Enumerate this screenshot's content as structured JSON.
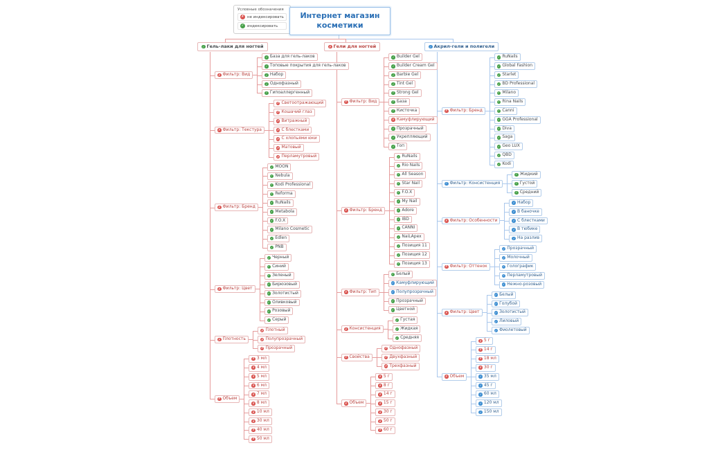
{
  "title": {
    "text": "Интернет магазин косметики"
  },
  "legend": {
    "title": "Условные обозначения",
    "items": [
      {
        "label": "не индексировать",
        "icon": "red"
      },
      {
        "label": "индексировать",
        "icon": "green"
      }
    ]
  },
  "colors": {
    "red_line": "#e59b9b",
    "red_border": "#e7b6b6",
    "blue_line": "#a9c7ec",
    "blue_border": "#b3cdea",
    "noindex_icon": "#d9534f",
    "index_icon": "#46a049",
    "blue_icon": "#3f8fd2",
    "title_text": "#2a6fb5"
  },
  "branches": [
    {
      "label": "Гель-лаки для ногтей",
      "icon": "green",
      "theme": "red",
      "children": [
        {
          "label": "Фильтр: Вид",
          "icon": "red",
          "children": [
            {
              "label": "База для гель-лаков",
              "icon": "green"
            },
            {
              "label": "Топовые покрытия для гель-лаков",
              "icon": "green"
            },
            {
              "label": "Набор",
              "icon": "green"
            },
            {
              "label": "Однофазный",
              "icon": "green"
            },
            {
              "label": "Гипоаллергенный",
              "icon": "green"
            }
          ]
        },
        {
          "label": "Фильтр: Текстура",
          "icon": "red",
          "children": [
            {
              "label": "Светоотражающий",
              "icon": "red"
            },
            {
              "label": "Кошачий глаз",
              "icon": "red"
            },
            {
              "label": "Витражный",
              "icon": "red"
            },
            {
              "label": "С блестками",
              "icon": "red"
            },
            {
              "label": "С хлопьями юки",
              "icon": "red"
            },
            {
              "label": "Матовый",
              "icon": "red"
            },
            {
              "label": "Перламутровый",
              "icon": "red"
            }
          ]
        },
        {
          "label": "Фильтр: Бренд",
          "icon": "red",
          "children": [
            {
              "label": "MOON",
              "icon": "green"
            },
            {
              "label": "Nebula",
              "icon": "green"
            },
            {
              "label": "Kodi Professional",
              "icon": "green"
            },
            {
              "label": "Reforma",
              "icon": "green"
            },
            {
              "label": "RuNails",
              "icon": "green"
            },
            {
              "label": "Metabola",
              "icon": "green"
            },
            {
              "label": "F.O.X",
              "icon": "green"
            },
            {
              "label": "Milano Cosmetic",
              "icon": "green"
            },
            {
              "label": "Edlen",
              "icon": "green"
            },
            {
              "label": "PNB",
              "icon": "green"
            }
          ]
        },
        {
          "label": "Фильтр: Цвет",
          "icon": "red",
          "children": [
            {
              "label": "Черный",
              "icon": "green"
            },
            {
              "label": "Синий",
              "icon": "green"
            },
            {
              "label": "Зеленый",
              "icon": "green"
            },
            {
              "label": "Бирюзовый",
              "icon": "green"
            },
            {
              "label": "Золотистый",
              "icon": "green"
            },
            {
              "label": "Оливковый",
              "icon": "green"
            },
            {
              "label": "Розовый",
              "icon": "green"
            },
            {
              "label": "Серый",
              "icon": "green"
            }
          ]
        },
        {
          "label": "Плотность",
          "icon": "red",
          "children": [
            {
              "label": "Плотный",
              "icon": "red"
            },
            {
              "label": "Полупрозрачный",
              "icon": "red"
            },
            {
              "label": "Прозрачный",
              "icon": "red"
            }
          ]
        },
        {
          "label": "Объем",
          "icon": "red",
          "children": [
            {
              "label": "3 мл",
              "icon": "red"
            },
            {
              "label": "4 мл",
              "icon": "red"
            },
            {
              "label": "5 мл",
              "icon": "red"
            },
            {
              "label": "6 мл",
              "icon": "red"
            },
            {
              "label": "7 мл",
              "icon": "red"
            },
            {
              "label": "8 мл",
              "icon": "red"
            },
            {
              "label": "10 мл",
              "icon": "red"
            },
            {
              "label": "30 мл",
              "icon": "red"
            },
            {
              "label": "40 мл",
              "icon": "red"
            },
            {
              "label": "50 мл",
              "icon": "red"
            }
          ]
        }
      ]
    },
    {
      "label": "Гели для ногтей",
      "icon": "red",
      "theme": "red",
      "children": [
        {
          "label": "Фильтр: Вид",
          "icon": "red",
          "children": [
            {
              "label": "Builder Gel",
              "icon": "green"
            },
            {
              "label": "Builder Cream Gel",
              "icon": "green"
            },
            {
              "label": "Barbie Gel",
              "icon": "green"
            },
            {
              "label": "Tint Gel",
              "icon": "green"
            },
            {
              "label": "Strong Gel",
              "icon": "green"
            },
            {
              "label": "База",
              "icon": "green"
            },
            {
              "label": "Кисточка",
              "icon": "green"
            },
            {
              "label": "Камуфлирующий",
              "icon": "red"
            },
            {
              "label": "Прозрачный",
              "icon": "green"
            },
            {
              "label": "Укрепляющий",
              "icon": "green"
            },
            {
              "label": "Топ",
              "icon": "green"
            }
          ]
        },
        {
          "label": "Фильтр: Бренд",
          "icon": "red",
          "children": [
            {
              "label": "RuNails",
              "icon": "green"
            },
            {
              "label": "Rio Nails",
              "icon": "green"
            },
            {
              "label": "All Season",
              "icon": "green"
            },
            {
              "label": "Star Nail",
              "icon": "green"
            },
            {
              "label": "F.O.X",
              "icon": "green"
            },
            {
              "label": "My Nail",
              "icon": "green"
            },
            {
              "label": "Adore",
              "icon": "green"
            },
            {
              "label": "IBD",
              "icon": "green"
            },
            {
              "label": "CANNI",
              "icon": "green"
            },
            {
              "label": "NaiLApex",
              "icon": "green"
            },
            {
              "label": "Позиция 11",
              "icon": "green"
            },
            {
              "label": "Позиция 12",
              "icon": "green"
            },
            {
              "label": "Позиция 13",
              "icon": "green"
            }
          ]
        },
        {
          "label": "Фильтр: Тип",
          "icon": "red",
          "children": [
            {
              "label": "Белый",
              "icon": "green"
            },
            {
              "label": "Камуфлирующий",
              "icon": "blue"
            },
            {
              "label": "Полупрозрачный",
              "icon": "blue"
            },
            {
              "label": "Прозрачный",
              "icon": "green"
            },
            {
              "label": "Цветной",
              "icon": "green"
            }
          ]
        },
        {
          "label": "Консистенция",
          "icon": "red",
          "children": [
            {
              "label": "Густая",
              "icon": "green"
            },
            {
              "label": "Жидкая",
              "icon": "green"
            },
            {
              "label": "Средняя",
              "icon": "green"
            }
          ]
        },
        {
          "label": "Свойства",
          "icon": "red",
          "children": [
            {
              "label": "Однофазный",
              "icon": "red"
            },
            {
              "label": "Двухфазный",
              "icon": "red"
            },
            {
              "label": "Трехфазный",
              "icon": "red"
            }
          ]
        },
        {
          "label": "Объем",
          "icon": "red",
          "children": [
            {
              "label": "5 г",
              "icon": "red"
            },
            {
              "label": "8 г",
              "icon": "red"
            },
            {
              "label": "14 г",
              "icon": "red"
            },
            {
              "label": "15 г",
              "icon": "red"
            },
            {
              "label": "30 г",
              "icon": "red"
            },
            {
              "label": "50 г",
              "icon": "red"
            },
            {
              "label": "60 г",
              "icon": "red"
            }
          ]
        }
      ]
    },
    {
      "label": "Акрил-гели и полигели",
      "icon": "blue",
      "theme": "blue",
      "children": [
        {
          "label": "Фильтр: Бренд",
          "icon": "red",
          "children": [
            {
              "label": "RuNails",
              "icon": "green"
            },
            {
              "label": "Global Fashion",
              "icon": "green"
            },
            {
              "label": "Starlet",
              "icon": "green"
            },
            {
              "label": "BD Professional",
              "icon": "green"
            },
            {
              "label": "Milano",
              "icon": "green"
            },
            {
              "label": "Rina Nails",
              "icon": "green"
            },
            {
              "label": "Canni",
              "icon": "green"
            },
            {
              "label": "GGA Professional",
              "icon": "green"
            },
            {
              "label": "Diva",
              "icon": "green"
            },
            {
              "label": "Saga",
              "icon": "green"
            },
            {
              "label": "Geo LUX",
              "icon": "green"
            },
            {
              "label": "QBD",
              "icon": "green"
            },
            {
              "label": "Kodi",
              "icon": "green"
            }
          ]
        },
        {
          "label": "Фильтр: Консистенция",
          "icon": "blue",
          "children": [
            {
              "label": "Жидкий",
              "icon": "green"
            },
            {
              "label": "Густой",
              "icon": "green"
            },
            {
              "label": "Средний",
              "icon": "green"
            }
          ]
        },
        {
          "label": "Фильтр: Особенности",
          "icon": "red",
          "children": [
            {
              "label": "Набор",
              "icon": "blue"
            },
            {
              "label": "В баночке",
              "icon": "blue"
            },
            {
              "label": "С блестками",
              "icon": "blue"
            },
            {
              "label": "В тюбике",
              "icon": "blue"
            },
            {
              "label": "На разлив",
              "icon": "blue"
            }
          ]
        },
        {
          "label": "Фильтр: Оттенок",
          "icon": "red",
          "children": [
            {
              "label": "Прозрачный",
              "icon": "blue"
            },
            {
              "label": "Молочный",
              "icon": "blue"
            },
            {
              "label": "Голографик",
              "icon": "blue"
            },
            {
              "label": "Перламутровый",
              "icon": "blue"
            },
            {
              "label": "Нежно-розовый",
              "icon": "blue"
            }
          ]
        },
        {
          "label": "Фильтр: Цвет",
          "icon": "red",
          "children": [
            {
              "label": "Белый",
              "icon": "blue"
            },
            {
              "label": "Голубой",
              "icon": "blue"
            },
            {
              "label": "Золотистый",
              "icon": "blue"
            },
            {
              "label": "Лиловый",
              "icon": "blue"
            },
            {
              "label": "Фиолетовый",
              "icon": "blue"
            }
          ]
        },
        {
          "label": "Объем",
          "icon": "red",
          "children": [
            {
              "label": "5 г",
              "icon": "red"
            },
            {
              "label": "14 г",
              "icon": "red"
            },
            {
              "label": "18 мл",
              "icon": "red"
            },
            {
              "label": "30 г",
              "icon": "red"
            },
            {
              "label": "35 мл",
              "icon": "blue"
            },
            {
              "label": "45 г",
              "icon": "blue"
            },
            {
              "label": "60 мл",
              "icon": "blue"
            },
            {
              "label": "120 мл",
              "icon": "blue"
            },
            {
              "label": "150 мл",
              "icon": "blue"
            }
          ]
        }
      ]
    }
  ]
}
